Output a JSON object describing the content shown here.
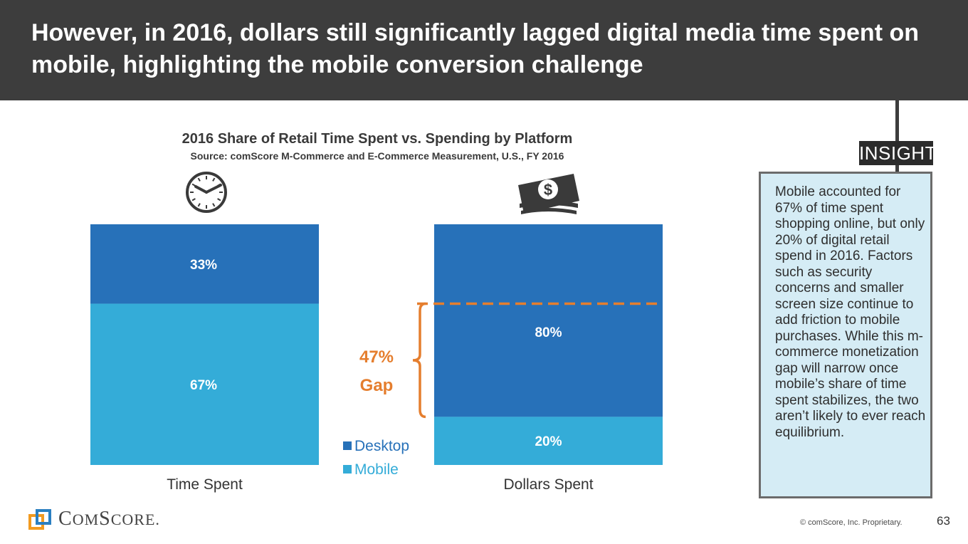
{
  "header": {
    "title": "However, in 2016, dollars still significantly lagged digital media time spent on mobile, highlighting the mobile conversion challenge"
  },
  "insight": {
    "tag": "INSIGHT",
    "text": "Mobile accounted for 67% of time spent shopping online, but only 20% of digital retail spend in 2016. Factors such as security concerns and smaller screen size continue to add friction to mobile purchases. While this m-commerce monetization gap will narrow once mobile’s share of time spent stabilizes, the two aren’t likely to ever reach equilibrium."
  },
  "chart_data": {
    "type": "bar",
    "stacked": true,
    "title": "2016 Share of Retail Time Spent vs. Spending by Platform",
    "subtitle": "Source: comScore M-Commerce and E-Commerce Measurement, U.S., FY 2016",
    "categories": [
      "Time Spent",
      "Dollars Spent"
    ],
    "series": [
      {
        "name": "Desktop",
        "values": [
          33,
          80
        ],
        "labels": [
          "33%",
          "80%"
        ],
        "color": "#2771b9"
      },
      {
        "name": "Mobile",
        "values": [
          67,
          20
        ],
        "labels": [
          "67%",
          "20%"
        ],
        "color": "#34acd8"
      }
    ],
    "ylim": [
      0,
      100
    ],
    "annotation": {
      "value": 47,
      "line1": "47%",
      "line2": "Gap",
      "color": "#e57e2e"
    },
    "legend": [
      "Desktop",
      "Mobile"
    ],
    "icons": [
      "clock-icon",
      "money-icon"
    ]
  },
  "footer": {
    "logo": "COMSCORE",
    "logo_parts": [
      "C",
      "OM",
      "S",
      "CORE",
      "."
    ],
    "copyright": "© comScore, Inc. Proprietary.",
    "page": "63"
  },
  "colors": {
    "header_bg": "#3d3d3d",
    "insight_bg": "#d5ecf5",
    "accent": "#e57e2e"
  }
}
